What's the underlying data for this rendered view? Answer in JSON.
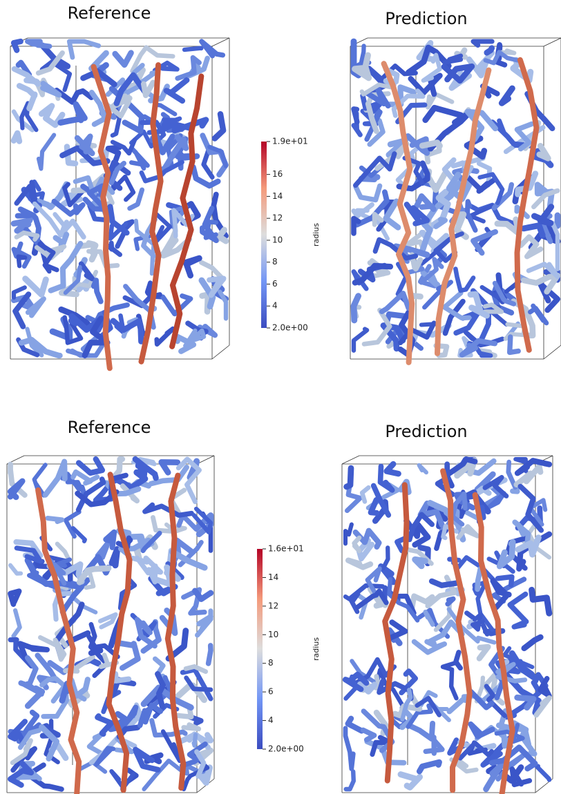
{
  "rows": [
    {
      "panels": [
        {
          "title": "Reference"
        },
        {
          "title": "Prediction"
        }
      ],
      "colorbar": {
        "label": "radius",
        "lim": [
          2,
          19
        ],
        "ticks": [
          {
            "value": 19,
            "label": "1.9e+01"
          },
          16,
          14,
          12,
          10,
          8,
          6,
          4,
          {
            "value": 2,
            "label": "2.0e+00"
          }
        ]
      }
    },
    {
      "panels": [
        {
          "title": "Reference"
        },
        {
          "title": "Prediction"
        }
      ],
      "colorbar": {
        "label": "radius",
        "lim": [
          2,
          16
        ],
        "ticks": [
          {
            "value": 16,
            "label": "1.6e+01"
          },
          14,
          12,
          10,
          8,
          6,
          4,
          {
            "value": 2,
            "label": "2.0e+00"
          }
        ]
      }
    }
  ]
}
